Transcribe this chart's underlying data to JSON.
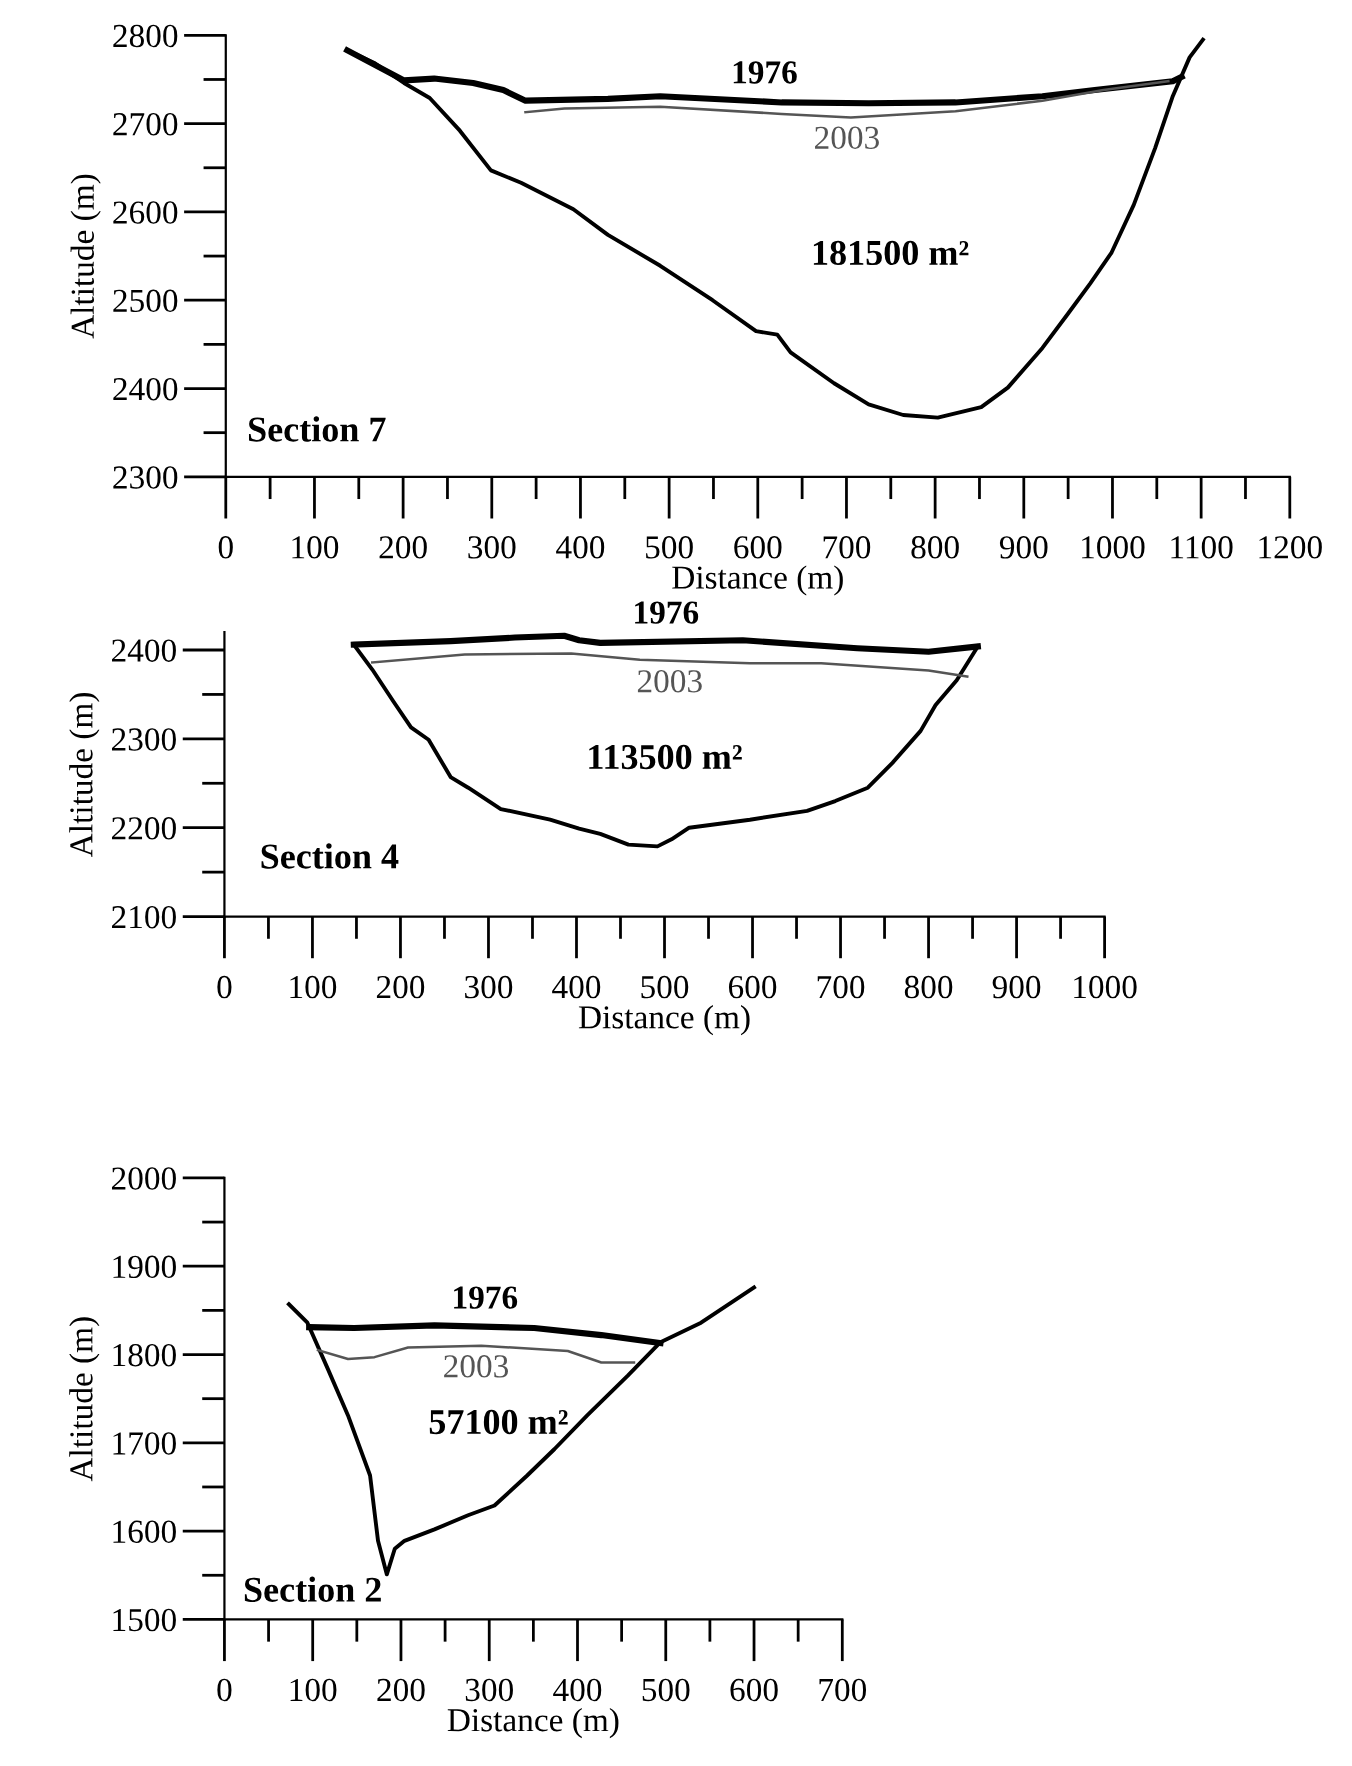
{
  "chart_data": [
    {
      "type": "line",
      "xlabel": "Distance (m)",
      "ylabel": "Altitude (m)",
      "xlim": [
        0,
        1200
      ],
      "ylim": [
        2300,
        2800
      ],
      "xticks": [
        0,
        {
          "value": 50,
          "label": null
        },
        100,
        {
          "value": 150,
          "label": null
        },
        200,
        {
          "value": 250,
          "label": null
        },
        300,
        {
          "value": 350,
          "label": null
        },
        400,
        {
          "value": 450,
          "label": null
        },
        500,
        {
          "value": 550,
          "label": null
        },
        600,
        {
          "value": 650,
          "label": null
        },
        700,
        {
          "value": 750,
          "label": null
        },
        800,
        {
          "value": 850,
          "label": null
        },
        900,
        {
          "value": 950,
          "label": null
        },
        1000,
        {
          "value": 1050,
          "label": null
        },
        1100,
        {
          "value": 1150,
          "label": null
        },
        1200
      ],
      "yticks": [
        2300,
        {
          "value": 2350,
          "label": null
        },
        2400,
        {
          "value": 2450,
          "label": null
        },
        2500,
        {
          "value": 2550,
          "label": null
        },
        2600,
        {
          "value": 2650,
          "label": null
        },
        2700,
        {
          "value": 2750,
          "label": null
        },
        2800
      ],
      "grid": false,
      "line_style": "solid",
      "annotations": [
        "181500 m²",
        "Section 7"
      ],
      "series": [
        {
          "color": "#000000",
          "x": [
            137,
            167,
            201,
            230,
            264,
            299,
            333,
            392,
            431,
            490,
            549,
            598,
            622,
            637,
            686,
            725,
            764,
            803,
            852,
            882,
            921,
            950,
            975,
            999,
            1024,
            1048,
            1068,
            1087,
            1102
          ],
          "values": [
            2783,
            2769,
            2746,
            2729,
            2692,
            2647,
            2633,
            2603,
            2574,
            2539,
            2500,
            2465,
            2461,
            2441,
            2406,
            2382,
            2370,
            2367,
            2379,
            2401,
            2446,
            2485,
            2519,
            2554,
            2608,
            2672,
            2731,
            2775,
            2795
          ]
        },
        {
          "name": "1976",
          "color": "#000000",
          "x": [
            137,
            201,
            235,
            279,
            313,
            338,
            431,
            490,
            627,
            725,
            823,
            921,
            980,
            1068,
            1078
          ],
          "values": [
            2783,
            2749,
            2751,
            2746,
            2738,
            2726,
            2728,
            2731,
            2724,
            2723,
            2724,
            2731,
            2738,
            2748,
            2753
          ]
        },
        {
          "name": "2003",
          "color": "#555555",
          "x": [
            338,
            382,
            490,
            627,
            705,
            823,
            921,
            990,
            1063
          ],
          "values": [
            2713,
            2717,
            2719,
            2711,
            2707,
            2714,
            2726,
            2738,
            2748
          ]
        }
      ]
    },
    {
      "type": "line",
      "xlabel": "Distance (m)",
      "ylabel": "Altitude (m)",
      "xlim": [
        0,
        1000
      ],
      "ylim": [
        2100,
        2420
      ],
      "xticks": [
        0,
        {
          "value": 50,
          "label": null
        },
        100,
        {
          "value": 150,
          "label": null
        },
        200,
        {
          "value": 250,
          "label": null
        },
        300,
        {
          "value": 350,
          "label": null
        },
        400,
        {
          "value": 450,
          "label": null
        },
        500,
        {
          "value": 550,
          "label": null
        },
        600,
        {
          "value": 650,
          "label": null
        },
        700,
        {
          "value": 750,
          "label": null
        },
        800,
        {
          "value": 850,
          "label": null
        },
        900,
        {
          "value": 950,
          "label": null
        },
        1000
      ],
      "yticks": [
        2100,
        {
          "value": 2150,
          "label": null
        },
        2200,
        {
          "value": 2250,
          "label": null
        },
        2300,
        {
          "value": 2350,
          "label": null
        },
        2400
      ],
      "grid": false,
      "line_style": "solid",
      "annotations": [
        "113500 m²",
        "Section 4"
      ],
      "series": [
        {
          "color": "#000000",
          "x": [
            147,
            168,
            192,
            212,
            232,
            257,
            277,
            314,
            370,
            403,
            427,
            459,
            492,
            508,
            528,
            597,
            662,
            694,
            731,
            759,
            791,
            808,
            832,
            856
          ],
          "values": [
            2406,
            2378,
            2342,
            2313,
            2299,
            2257,
            2245,
            2221,
            2209,
            2199,
            2193,
            2181,
            2179,
            2187,
            2200,
            2209,
            2219,
            2230,
            2245,
            2273,
            2309,
            2338,
            2366,
            2404
          ]
        },
        {
          "name": "1976",
          "color": "#000000",
          "x": [
            147,
            257,
            330,
            386,
            403,
            427,
            589,
            719,
            800,
            856
          ],
          "values": [
            2406,
            2410,
            2414,
            2416,
            2411,
            2408,
            2411,
            2402,
            2398,
            2404
          ]
        },
        {
          "name": "2003",
          "color": "#555555",
          "x": [
            168,
            273,
            394,
            472,
            597,
            678,
            800,
            844
          ],
          "values": [
            2386,
            2395,
            2396,
            2389,
            2385,
            2385,
            2377,
            2370
          ]
        }
      ]
    },
    {
      "type": "line",
      "xlabel": "Distance (m)",
      "ylabel": "Altitude (m)",
      "xlim": [
        0,
        700
      ],
      "ylim": [
        1500,
        2000
      ],
      "xticks": [
        0,
        {
          "value": 50,
          "label": null
        },
        100,
        {
          "value": 150,
          "label": null
        },
        200,
        {
          "value": 250,
          "label": null
        },
        300,
        {
          "value": 350,
          "label": null
        },
        400,
        {
          "value": 450,
          "label": null
        },
        500,
        {
          "value": 550,
          "label": null
        },
        600,
        {
          "value": 650,
          "label": null
        },
        700
      ],
      "yticks": [
        1500,
        {
          "value": 1550,
          "label": null
        },
        1600,
        {
          "value": 1650,
          "label": null
        },
        1700,
        {
          "value": 1750,
          "label": null
        },
        1800,
        {
          "value": 1850,
          "label": null
        },
        1900,
        {
          "value": 1950,
          "label": null
        },
        2000
      ],
      "grid": false,
      "line_style": "solid",
      "annotations": [
        "57100 m²",
        "Section 2"
      ],
      "series": [
        {
          "color": "#000000",
          "x": [
            73,
            94,
            117,
            140,
            165,
            174,
            184,
            193,
            204,
            238,
            276,
            306,
            343,
            374,
            411,
            457,
            494,
            540,
            600
          ],
          "values": [
            1857,
            1836,
            1784,
            1731,
            1663,
            1589,
            1551,
            1580,
            1589,
            1602,
            1618,
            1629,
            1663,
            1693,
            1731,
            1776,
            1814,
            1836,
            1876
          ]
        },
        {
          "name": "1976",
          "color": "#000000",
          "x": [
            96,
            147,
            238,
            351,
            427,
            494
          ],
          "values": [
            1831,
            1830,
            1833,
            1830,
            1822,
            1813
          ]
        },
        {
          "name": "2003",
          "color": "#555555",
          "x": [
            106,
            140,
            170,
            208,
            291,
            389,
            427,
            464
          ],
          "values": [
            1805,
            1795,
            1797,
            1808,
            1810,
            1804,
            1791,
            1791
          ]
        }
      ]
    }
  ]
}
